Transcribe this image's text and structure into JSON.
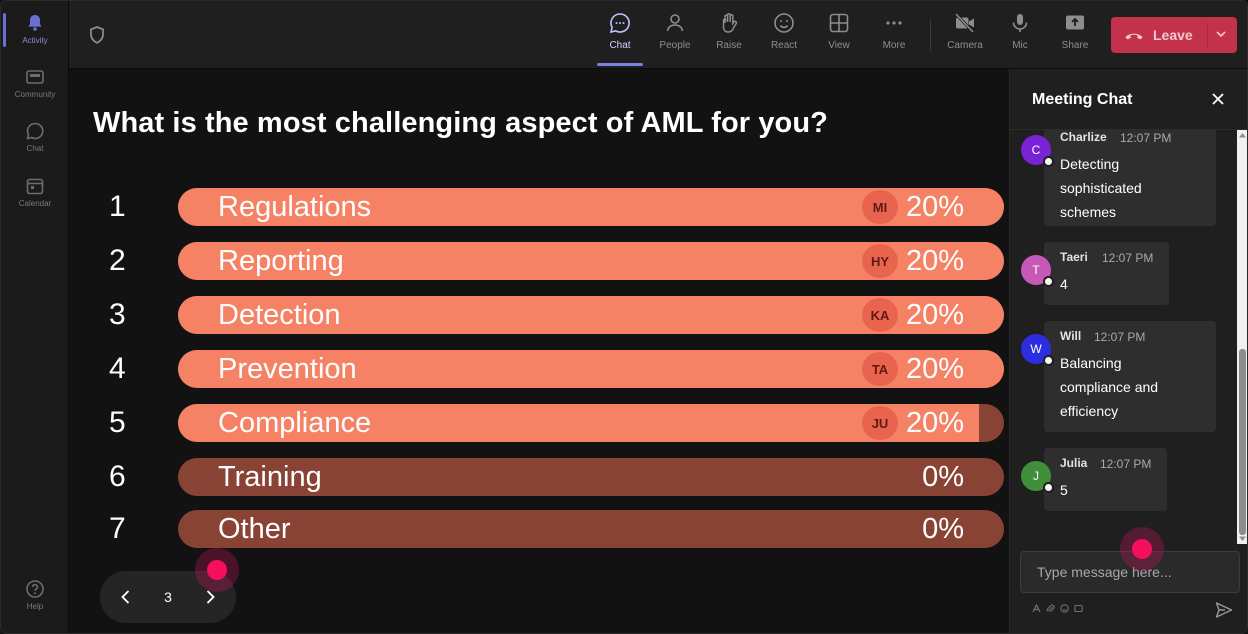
{
  "rail": {
    "items": [
      {
        "label": "Activity",
        "icon": "bell-icon",
        "active": true
      },
      {
        "label": "Community",
        "icon": "community-icon"
      },
      {
        "label": "Chat",
        "icon": "chat-icon"
      },
      {
        "label": "Calendar",
        "icon": "calendar-icon"
      },
      {
        "label": "Help",
        "icon": "help-icon"
      }
    ]
  },
  "toolbar": {
    "buttons": [
      {
        "label": "Chat",
        "icon": "chat-icon",
        "active": true
      },
      {
        "label": "People",
        "icon": "people-icon"
      },
      {
        "label": "Raise",
        "icon": "raise-hand-icon"
      },
      {
        "label": "React",
        "icon": "react-icon"
      },
      {
        "label": "View",
        "icon": "view-icon"
      },
      {
        "label": "More",
        "icon": "more-icon"
      },
      {
        "label": "Camera",
        "icon": "camera-off-icon"
      },
      {
        "label": "Mic",
        "icon": "mic-icon"
      },
      {
        "label": "Share",
        "icon": "share-icon"
      }
    ],
    "leave_label": "Leave"
  },
  "poll": {
    "question": "What is the most challenging aspect of AML for you?",
    "options": [
      {
        "num": "1",
        "label": "Regulations",
        "badge": "MI",
        "pct": "20%",
        "fill": 1.0
      },
      {
        "num": "2",
        "label": "Reporting",
        "badge": "HY",
        "pct": "20%",
        "fill": 1.0
      },
      {
        "num": "3",
        "label": "Detection",
        "badge": "KA",
        "pct": "20%",
        "fill": 1.0
      },
      {
        "num": "4",
        "label": "Prevention",
        "badge": "TA",
        "pct": "20%",
        "fill": 1.0
      },
      {
        "num": "5",
        "label": "Compliance",
        "badge": "JU",
        "pct": "20%",
        "fill": 0.97
      },
      {
        "num": "6",
        "label": "Training",
        "badge": "",
        "pct": "0%",
        "fill": 0
      },
      {
        "num": "7",
        "label": "Other",
        "badge": "",
        "pct": "0%",
        "fill": 0
      }
    ],
    "page": "3"
  },
  "chat": {
    "title": "Meeting Chat",
    "messages": [
      {
        "initial": "C",
        "name": "Charlize",
        "time": "12:07 PM",
        "lines": [
          "Detecting",
          "sophisticated",
          "schemes"
        ],
        "color": "#7a22d6"
      },
      {
        "initial": "T",
        "name": "Taeri",
        "time": "12:07 PM",
        "lines": [
          "4"
        ],
        "color": "#c659b8"
      },
      {
        "initial": "W",
        "name": "Will",
        "time": "12:07 PM",
        "lines": [
          "Balancing",
          "compliance and",
          "efficiency"
        ],
        "color": "#2d2de0"
      },
      {
        "initial": "J",
        "name": "Julia",
        "time": "12:07 PM",
        "lines": [
          "5"
        ],
        "color": "#3f8f3a"
      }
    ],
    "input_placeholder": "Type message here..."
  },
  "colors": {
    "bar_fill": "#f58264",
    "bar_track": "#884334",
    "leave": "#c4314b",
    "accent": "#7a80e0"
  }
}
